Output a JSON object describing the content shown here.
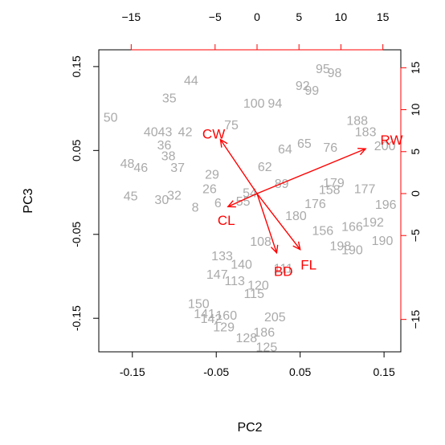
{
  "chart_data": {
    "type": "scatter",
    "subtype": "biplot",
    "xlabel": "PC2",
    "ylabel": "PC3",
    "xlim": [
      -0.19,
      0.17
    ],
    "ylim": [
      -0.19,
      0.17
    ],
    "bottom_ticks": [
      -0.15,
      -0.05,
      0.05,
      0.15
    ],
    "left_ticks": [
      -0.15,
      -0.05,
      0.05,
      0.15
    ],
    "top_ticks": [
      -15,
      -5,
      0,
      5,
      10,
      15
    ],
    "right_ticks": [
      -15,
      -5,
      0,
      5,
      10,
      15
    ],
    "top_right_scale_per_unit": 0.01,
    "label_color": "#aaaaaa",
    "arrow_color": "#ff0000",
    "observations": [
      {
        "label": "95",
        "x": 0.077,
        "y": 0.148
      },
      {
        "label": "98",
        "x": 0.091,
        "y": 0.143
      },
      {
        "label": "44",
        "x": -0.08,
        "y": 0.134
      },
      {
        "label": "92",
        "x": 0.053,
        "y": 0.128
      },
      {
        "label": "99",
        "x": 0.064,
        "y": 0.122
      },
      {
        "label": "35",
        "x": -0.106,
        "y": 0.113
      },
      {
        "label": "100",
        "x": -0.005,
        "y": 0.107
      },
      {
        "label": "94",
        "x": 0.02,
        "y": 0.107
      },
      {
        "label": "50",
        "x": -0.176,
        "y": 0.09
      },
      {
        "label": "75",
        "x": -0.032,
        "y": 0.081
      },
      {
        "label": "188",
        "x": 0.118,
        "y": 0.086
      },
      {
        "label": "183",
        "x": 0.128,
        "y": 0.073
      },
      {
        "label": "200",
        "x": 0.151,
        "y": 0.056
      },
      {
        "label": "65",
        "x": 0.055,
        "y": 0.059
      },
      {
        "label": "76",
        "x": 0.086,
        "y": 0.054
      },
      {
        "label": "40",
        "x": -0.128,
        "y": 0.073
      },
      {
        "label": "43",
        "x": -0.111,
        "y": 0.073
      },
      {
        "label": "42",
        "x": -0.087,
        "y": 0.073
      },
      {
        "label": "36",
        "x": -0.112,
        "y": 0.057
      },
      {
        "label": "38",
        "x": -0.107,
        "y": 0.044
      },
      {
        "label": "48",
        "x": -0.156,
        "y": 0.035
      },
      {
        "label": "46",
        "x": -0.14,
        "y": 0.03
      },
      {
        "label": "37",
        "x": -0.096,
        "y": 0.03
      },
      {
        "label": "45",
        "x": -0.152,
        "y": -0.004
      },
      {
        "label": "30",
        "x": -0.115,
        "y": -0.008
      },
      {
        "label": "32",
        "x": -0.1,
        "y": -0.003
      },
      {
        "label": "8",
        "x": -0.075,
        "y": -0.017
      },
      {
        "label": "29",
        "x": -0.055,
        "y": 0.022
      },
      {
        "label": "26",
        "x": -0.058,
        "y": 0.005
      },
      {
        "label": "6",
        "x": -0.048,
        "y": -0.012
      },
      {
        "label": "55",
        "x": -0.018,
        "y": -0.01
      },
      {
        "label": "54",
        "x": -0.01,
        "y": 0.0
      },
      {
        "label": "64",
        "x": 0.032,
        "y": 0.052
      },
      {
        "label": "62",
        "x": 0.008,
        "y": 0.031
      },
      {
        "label": "89",
        "x": 0.028,
        "y": 0.011
      },
      {
        "label": "180",
        "x": 0.045,
        "y": -0.027
      },
      {
        "label": "179",
        "x": 0.09,
        "y": 0.012
      },
      {
        "label": "158",
        "x": 0.085,
        "y": 0.004
      },
      {
        "label": "177",
        "x": 0.127,
        "y": 0.005
      },
      {
        "label": "196",
        "x": 0.152,
        "y": -0.014
      },
      {
        "label": "192",
        "x": 0.137,
        "y": -0.035
      },
      {
        "label": "190",
        "x": 0.148,
        "y": -0.057
      },
      {
        "label": "166",
        "x": 0.112,
        "y": -0.04
      },
      {
        "label": "198",
        "x": 0.098,
        "y": -0.063
      },
      {
        "label": "190",
        "x": 0.112,
        "y": -0.068
      },
      {
        "label": "176",
        "x": 0.068,
        "y": -0.013
      },
      {
        "label": "156",
        "x": 0.077,
        "y": -0.045
      },
      {
        "label": "108",
        "x": 0.003,
        "y": -0.058
      },
      {
        "label": "133",
        "x": -0.043,
        "y": -0.075
      },
      {
        "label": "140",
        "x": -0.02,
        "y": -0.085
      },
      {
        "label": "147",
        "x": -0.049,
        "y": -0.097
      },
      {
        "label": "111",
        "x": 0.03,
        "y": -0.09
      },
      {
        "label": "150",
        "x": -0.071,
        "y": -0.132
      },
      {
        "label": "142",
        "x": -0.056,
        "y": -0.15
      },
      {
        "label": "141",
        "x": -0.064,
        "y": -0.144
      },
      {
        "label": "129",
        "x": -0.041,
        "y": -0.16
      },
      {
        "label": "160",
        "x": -0.038,
        "y": -0.146
      },
      {
        "label": "128",
        "x": -0.014,
        "y": -0.173
      },
      {
        "label": "186",
        "x": 0.007,
        "y": -0.166
      },
      {
        "label": "125",
        "x": 0.01,
        "y": -0.184
      },
      {
        "label": "205",
        "x": 0.02,
        "y": -0.148
      },
      {
        "label": "115",
        "x": -0.005,
        "y": -0.12
      },
      {
        "label": "120",
        "x": 0.0,
        "y": -0.11
      },
      {
        "label": "113",
        "x": -0.028,
        "y": -0.105
      }
    ],
    "arrows": [
      {
        "label": "RW",
        "x": 0.128,
        "y": 0.052,
        "label_x": 0.159,
        "label_y": 0.063
      },
      {
        "label": "CW",
        "x": -0.045,
        "y": 0.063,
        "label_x": -0.053,
        "label_y": 0.07
      },
      {
        "label": "CL",
        "x": -0.036,
        "y": -0.017,
        "label_x": -0.038,
        "label_y": -0.033
      },
      {
        "label": "BD",
        "x": 0.022,
        "y": -0.072,
        "label_x": 0.03,
        "label_y": -0.094
      },
      {
        "label": "FL",
        "x": 0.05,
        "y": -0.068,
        "label_x": 0.06,
        "label_y": -0.086
      }
    ]
  }
}
